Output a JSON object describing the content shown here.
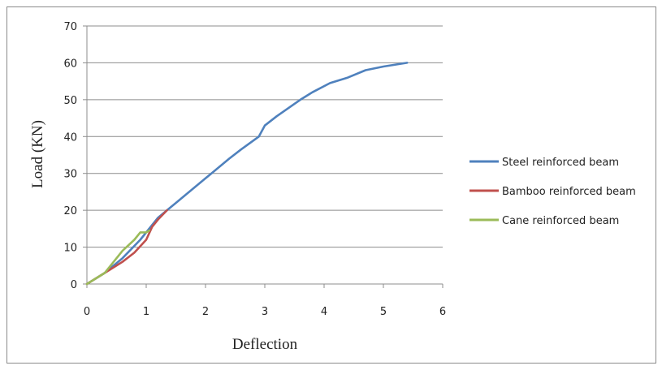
{
  "chart_data": {
    "type": "line",
    "title": "",
    "xlabel": "Deflection",
    "ylabel": "Load (KN)",
    "xlim": [
      0,
      6
    ],
    "ylim": [
      0,
      70
    ],
    "xticks": [
      0,
      1,
      2,
      3,
      4,
      5,
      6
    ],
    "yticks": [
      0,
      10,
      20,
      30,
      40,
      50,
      60,
      70
    ],
    "grid": "horizontal",
    "legend_position": "right",
    "series": [
      {
        "name": "Steel reinforced beam",
        "color": "#4f81bd",
        "points": [
          [
            0,
            0
          ],
          [
            0.3,
            3
          ],
          [
            0.6,
            7
          ],
          [
            0.9,
            12
          ],
          [
            1.2,
            18
          ],
          [
            1.5,
            22
          ],
          [
            1.8,
            26
          ],
          [
            2.1,
            30
          ],
          [
            2.4,
            34
          ],
          [
            2.6,
            36.5
          ],
          [
            2.9,
            40
          ],
          [
            3.0,
            43
          ],
          [
            3.2,
            45.5
          ],
          [
            3.6,
            50
          ],
          [
            3.8,
            52
          ],
          [
            4.1,
            54.5
          ],
          [
            4.4,
            56
          ],
          [
            4.7,
            58
          ],
          [
            5.0,
            59
          ],
          [
            5.4,
            60
          ]
        ]
      },
      {
        "name": "Bamboo reinforced beam",
        "color": "#c0504d",
        "points": [
          [
            0,
            0
          ],
          [
            0.3,
            3
          ],
          [
            0.6,
            6
          ],
          [
            0.8,
            8.5
          ],
          [
            1.0,
            12
          ],
          [
            1.1,
            15.5
          ],
          [
            1.2,
            17.5
          ],
          [
            1.35,
            20
          ]
        ]
      },
      {
        "name": "Cane reinforced beam",
        "color": "#9bbb59",
        "points": [
          [
            0,
            0
          ],
          [
            0.3,
            3
          ],
          [
            0.6,
            9
          ],
          [
            0.8,
            12
          ],
          [
            0.9,
            14
          ],
          [
            1.0,
            14
          ],
          [
            1.05,
            14.5
          ]
        ]
      }
    ]
  }
}
